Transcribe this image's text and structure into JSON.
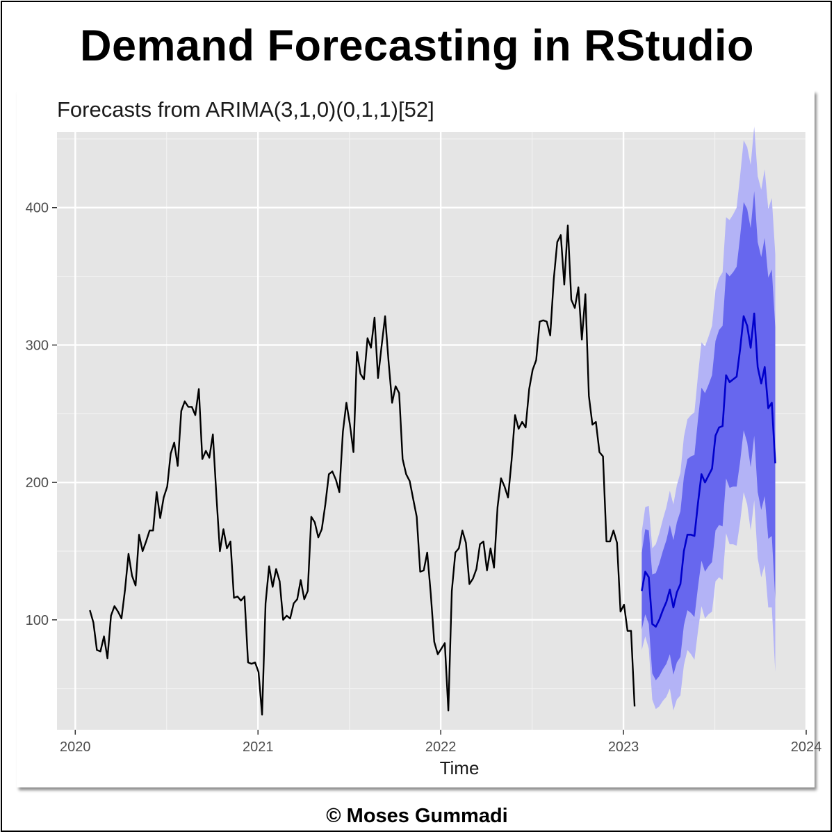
{
  "page": {
    "title": "Demand Forecasting in RStudio",
    "copyright": "© Moses Gummadi"
  },
  "chart_data": {
    "type": "line",
    "title": "Forecasts from ARIMA(3,1,0)(0,1,1)[52]",
    "xlabel": "Time",
    "ylabel": "",
    "xlim": [
      2019.9,
      2024.0
    ],
    "ylim": [
      20,
      455
    ],
    "x_ticks": [
      {
        "value": 2020,
        "label": "2020"
      },
      {
        "value": 2021,
        "label": "2021"
      },
      {
        "value": 2022,
        "label": "2022"
      },
      {
        "value": 2023,
        "label": "2023"
      },
      {
        "value": 2024,
        "label": "2024"
      }
    ],
    "y_ticks": [
      {
        "value": 100,
        "label": "100"
      },
      {
        "value": 200,
        "label": "200"
      },
      {
        "value": 300,
        "label": "300"
      },
      {
        "value": 400,
        "label": "400"
      }
    ],
    "grid": true,
    "background": "#e5e5e5",
    "colors": {
      "history": "#000000",
      "forecast_mean": "#0000cc",
      "band_80": "#6767ee",
      "band_95": "#b3b3f6"
    },
    "history": {
      "start": 2020.08,
      "step": 0.019231,
      "values": [
        107,
        98,
        78,
        77,
        88,
        72,
        103,
        110,
        106,
        101,
        122,
        148,
        132,
        125,
        162,
        150,
        157,
        165,
        165,
        193,
        174,
        189,
        197,
        221,
        229,
        212,
        252,
        259,
        255,
        255,
        249,
        268,
        217,
        223,
        218,
        235,
        190,
        150,
        166,
        152,
        157,
        116,
        117,
        114,
        117,
        69,
        68,
        69,
        62,
        31,
        112,
        139,
        124,
        137,
        128,
        100,
        103,
        101,
        112,
        115,
        129,
        115,
        121,
        175,
        171,
        160,
        166,
        184,
        206,
        208,
        202,
        193,
        237,
        258,
        242,
        222,
        295,
        279,
        275,
        305,
        298,
        320,
        276,
        299,
        321,
        288,
        258,
        270,
        265,
        217,
        206,
        201,
        188,
        175,
        135,
        136,
        149,
        119,
        84,
        75,
        79,
        83,
        34,
        121,
        149,
        152,
        165,
        156,
        126,
        130,
        137,
        155,
        157,
        136,
        152,
        138,
        182,
        203,
        197,
        189,
        216,
        249,
        239,
        244,
        240,
        268,
        282,
        289,
        317,
        318,
        317,
        307,
        348,
        375,
        380,
        344,
        387,
        333,
        327,
        342,
        304,
        337,
        263,
        242,
        244,
        222,
        219,
        157,
        157,
        165,
        156,
        106,
        111,
        92,
        92,
        37
      ]
    },
    "forecast": {
      "start": 2023.1,
      "step": 0.019231,
      "mean": [
        121,
        135,
        131,
        97,
        95,
        100,
        107,
        113,
        122,
        109,
        120,
        126,
        150,
        162,
        162,
        161,
        185,
        206,
        200,
        205,
        210,
        234,
        240,
        241,
        278,
        273,
        275,
        277,
        297,
        321,
        314,
        298,
        323,
        284,
        272,
        284,
        254,
        258,
        214
      ],
      "lo80": [
        93,
        104,
        97,
        61,
        56,
        59,
        64,
        68,
        75,
        60,
        69,
        73,
        96,
        107,
        105,
        102,
        124,
        143,
        135,
        139,
        142,
        165,
        169,
        168,
        203,
        196,
        197,
        197,
        215,
        238,
        229,
        211,
        234,
        193,
        180,
        190,
        159,
        161,
        115
      ],
      "hi80": [
        149,
        166,
        165,
        133,
        134,
        141,
        150,
        158,
        169,
        158,
        171,
        179,
        204,
        217,
        219,
        220,
        246,
        269,
        265,
        271,
        278,
        303,
        311,
        314,
        353,
        350,
        353,
        357,
        379,
        404,
        399,
        385,
        412,
        375,
        364,
        378,
        349,
        355,
        313
      ],
      "lo95": [
        78,
        88,
        79,
        42,
        35,
        37,
        41,
        44,
        50,
        34,
        42,
        45,
        67,
        78,
        75,
        71,
        92,
        110,
        101,
        104,
        106,
        128,
        131,
        129,
        163,
        155,
        155,
        154,
        171,
        193,
        184,
        165,
        187,
        145,
        131,
        140,
        109,
        109,
        62
      ],
      "hi95": [
        164,
        182,
        183,
        152,
        155,
        163,
        173,
        182,
        194,
        184,
        198,
        207,
        233,
        246,
        249,
        251,
        278,
        302,
        299,
        306,
        314,
        340,
        349,
        353,
        393,
        391,
        395,
        400,
        423,
        449,
        444,
        431,
        459,
        423,
        413,
        428,
        399,
        407,
        366
      ]
    }
  }
}
